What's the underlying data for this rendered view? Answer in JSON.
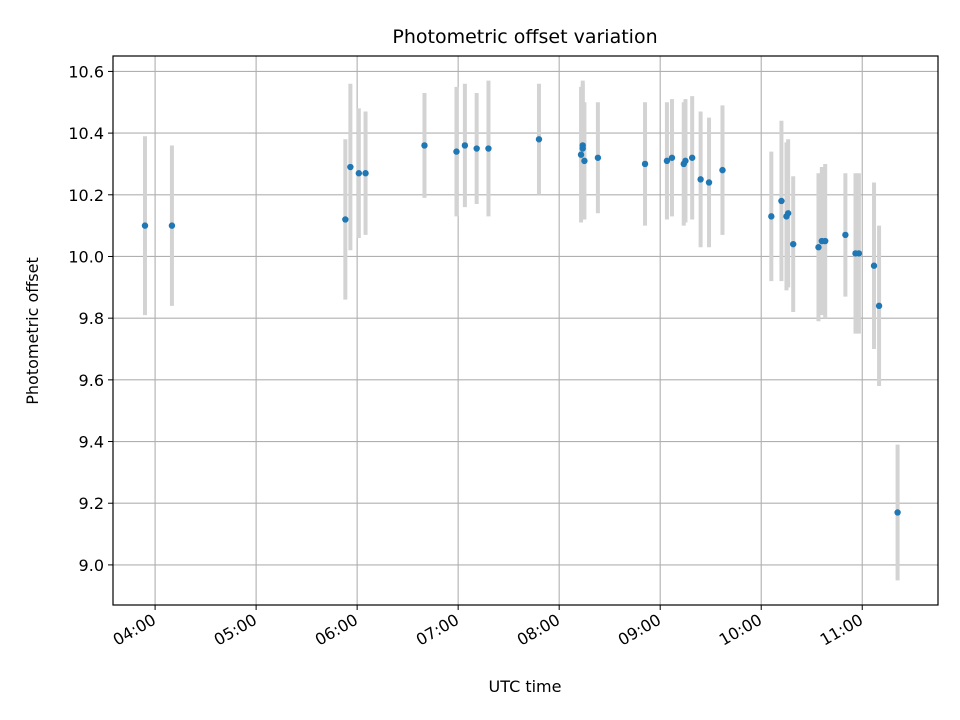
{
  "chart_data": {
    "type": "scatter",
    "title": "Photometric offset variation",
    "xlabel": "UTC time",
    "ylabel": "Photometric offset",
    "x_tick_labels": [
      "04:00",
      "05:00",
      "06:00",
      "07:00",
      "08:00",
      "09:00",
      "10:00",
      "11:00"
    ],
    "x_tick_hours": [
      4,
      5,
      6,
      7,
      8,
      9,
      10,
      11
    ],
    "y_tick_values": [
      9.0,
      9.2,
      9.4,
      9.6,
      9.8,
      10.0,
      10.2,
      10.4,
      10.6
    ],
    "y_tick_labels": [
      "9.0",
      "9.2",
      "9.4",
      "9.6",
      "9.8",
      "10.0",
      "10.2",
      "10.4",
      "10.6"
    ],
    "xlim": [
      "03:35",
      "11:45"
    ],
    "ylim": [
      8.87,
      10.65
    ],
    "grid": true,
    "x_tick_rotation": "30 degrees",
    "colors": {
      "point": "#1f77b4",
      "errorbar": "#d3d3d3",
      "grid": "#b0b0b0"
    },
    "series": [
      {
        "x": [
          "03:54",
          "04:10",
          "05:53",
          "05:56",
          "06:01",
          "06:05",
          "06:40",
          "06:59",
          "07:04",
          "07:11",
          "07:18",
          "07:48",
          "08:13",
          "08:14",
          "08:14",
          "08:15",
          "08:23",
          "08:51",
          "09:04",
          "09:07",
          "09:14",
          "09:15",
          "09:19",
          "09:24",
          "09:29",
          "09:37",
          "10:06",
          "10:12",
          "10:15",
          "10:16",
          "10:19",
          "10:34",
          "10:36",
          "10:38",
          "10:50",
          "10:56",
          "10:58",
          "11:07",
          "11:10",
          "11:21"
        ],
        "y": [
          10.1,
          10.1,
          10.12,
          10.29,
          10.27,
          10.27,
          10.36,
          10.34,
          10.36,
          10.35,
          10.35,
          10.38,
          10.33,
          10.36,
          10.35,
          10.31,
          10.32,
          10.3,
          10.31,
          10.32,
          10.3,
          10.31,
          10.32,
          10.25,
          10.24,
          10.28,
          10.13,
          10.18,
          10.13,
          10.14,
          10.04,
          10.03,
          10.05,
          10.05,
          10.07,
          10.01,
          10.01,
          9.97,
          9.84,
          9.17
        ],
        "yerr": [
          0.29,
          0.26,
          0.26,
          0.27,
          0.21,
          0.2,
          0.17,
          0.21,
          0.2,
          0.18,
          0.22,
          0.18,
          0.22,
          0.21,
          0.21,
          0.19,
          0.18,
          0.2,
          0.19,
          0.19,
          0.2,
          0.2,
          0.2,
          0.22,
          0.21,
          0.21,
          0.21,
          0.26,
          0.24,
          0.24,
          0.22,
          0.24,
          0.24,
          0.25,
          0.2,
          0.26,
          0.26,
          0.27,
          0.26,
          0.22
        ]
      }
    ]
  }
}
